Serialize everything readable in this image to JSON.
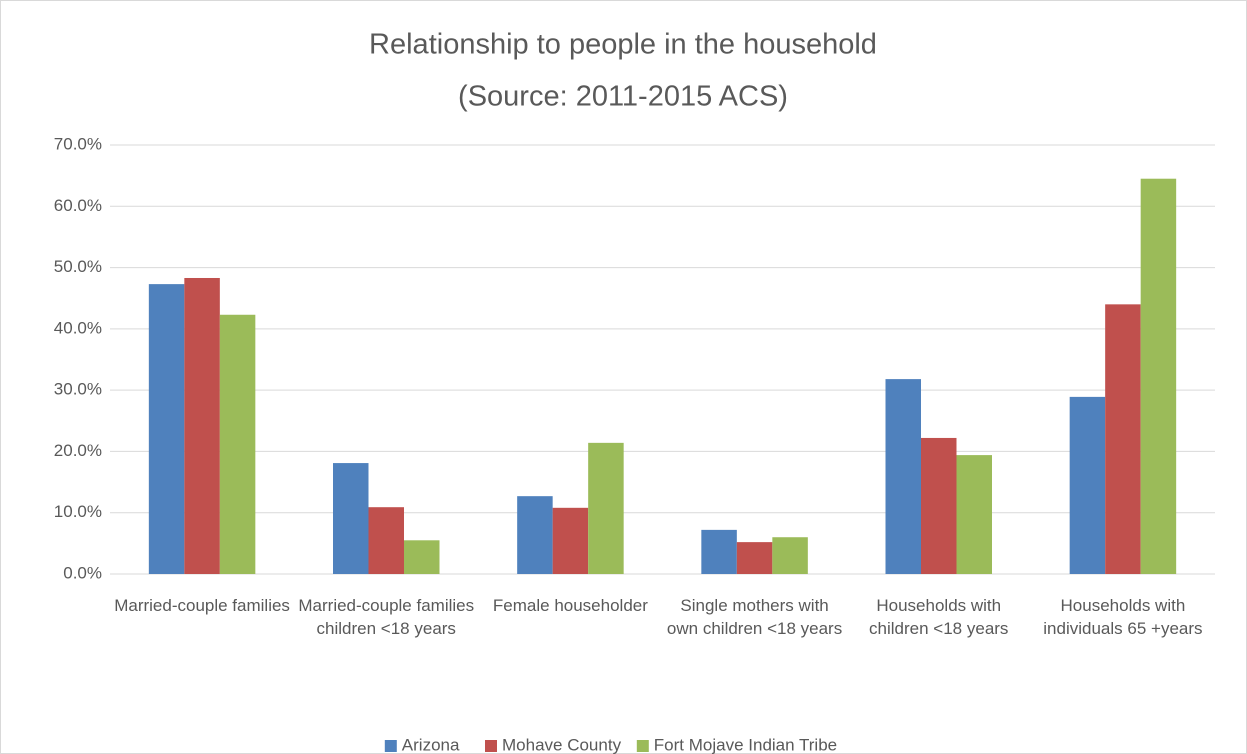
{
  "chart_data": {
    "type": "bar",
    "title": "Relationship to people in the household",
    "subtitle": "(Source: 2011-2015 ACS)",
    "categories": [
      "Married-couple families",
      "Married-couple families children <18 years",
      "Female householder",
      "Single mothers with own children <18 years",
      "Households with children <18 years",
      "Households with individuals 65 +years"
    ],
    "series": [
      {
        "name": "Arizona",
        "color": "#4f81bd",
        "values": [
          47.3,
          18.1,
          12.7,
          7.2,
          31.8,
          28.9
        ]
      },
      {
        "name": "Mohave County",
        "color": "#c0504d",
        "values": [
          48.3,
          10.9,
          10.8,
          5.2,
          22.2,
          44.0
        ]
      },
      {
        "name": "Fort Mojave Indian Tribe",
        "color": "#9bbb59",
        "values": [
          42.3,
          5.5,
          21.4,
          6.0,
          19.4,
          64.5
        ]
      }
    ],
    "ylim": [
      0,
      70
    ],
    "yticks": [
      {
        "value": 0,
        "label": "0.0%"
      },
      {
        "value": 10,
        "label": "10.0%"
      },
      {
        "value": 20,
        "label": "20.0%"
      },
      {
        "value": 30,
        "label": "30.0%"
      },
      {
        "value": 40,
        "label": "40.0%"
      },
      {
        "value": 50,
        "label": "50.0%"
      },
      {
        "value": 60,
        "label": "60.0%"
      },
      {
        "value": 70,
        "label": "70.0%"
      }
    ],
    "grid": true,
    "legend": "bottom"
  }
}
